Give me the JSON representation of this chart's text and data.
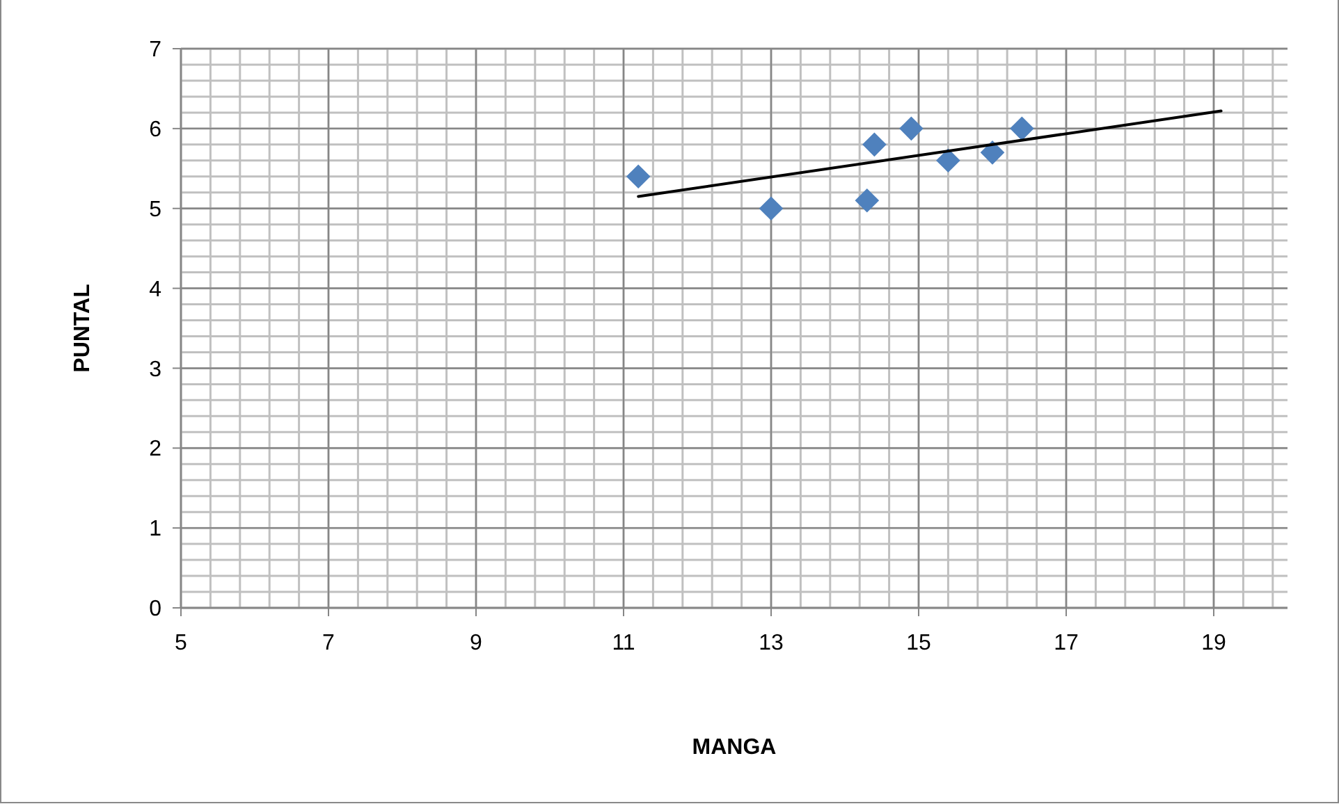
{
  "chart_data": {
    "type": "scatter",
    "xlabel": "MANGA",
    "ylabel": "PUNTAL",
    "xlim": [
      5,
      20
    ],
    "xticks": [
      5,
      7,
      9,
      11,
      13,
      15,
      17,
      19
    ],
    "ylim": [
      0,
      7
    ],
    "yticks": [
      0,
      1,
      2,
      3,
      4,
      5,
      6,
      7
    ],
    "grid": true,
    "series": [
      {
        "color": "#4f81bd",
        "marker": "diamond",
        "x": [
          11.2,
          13,
          14.3,
          14.4,
          14.9,
          15.4,
          16,
          16.4
        ],
        "values": [
          5.4,
          5.0,
          5.1,
          5.8,
          6.0,
          5.6,
          5.7,
          6.0
        ]
      },
      {
        "type": "line",
        "color": "#000000",
        "x": [
          11.2,
          19.1
        ],
        "values": [
          5.15,
          6.22
        ]
      }
    ]
  }
}
